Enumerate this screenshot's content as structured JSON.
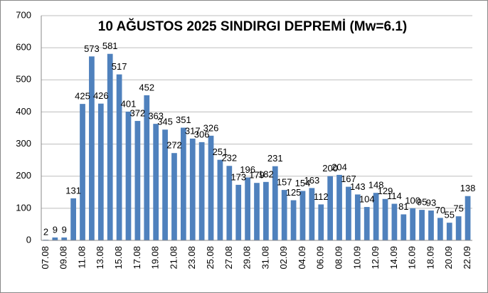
{
  "chart_data": {
    "type": "bar",
    "title": "10 AĞUSTOS 2025 SINDIRGI DEPREMİ (Mw=6.1)",
    "categories": [
      "07.08",
      null,
      "09.08",
      null,
      "11.08",
      null,
      "13.08",
      null,
      "15.08",
      null,
      "17.08",
      null,
      "19.08",
      null,
      "21.08",
      null,
      "23.08",
      null,
      "25.08",
      null,
      "27.08",
      null,
      "29.08",
      null,
      "31.08",
      null,
      "02.09",
      null,
      "04.09",
      null,
      "06.09",
      null,
      "08.09",
      null,
      "10.09",
      null,
      "12.09",
      null,
      "14.09",
      null,
      "16.09",
      null,
      "18.09",
      null,
      "20.09",
      null,
      "22.09"
    ],
    "values": [
      2,
      9,
      9,
      131,
      425,
      573,
      426,
      581,
      517,
      401,
      372,
      452,
      363,
      345,
      272,
      351,
      317,
      306,
      326,
      251,
      232,
      173,
      196,
      179,
      182,
      231,
      157,
      125,
      154,
      163,
      112,
      200,
      204,
      167,
      143,
      104,
      148,
      129,
      114,
      81,
      100,
      95,
      93,
      70,
      55,
      75,
      138
    ],
    "color": "#4f81bd",
    "ylim": [
      0,
      700
    ],
    "yticks": [
      0,
      100,
      200,
      300,
      400,
      500,
      600,
      700
    ],
    "grid": true
  }
}
